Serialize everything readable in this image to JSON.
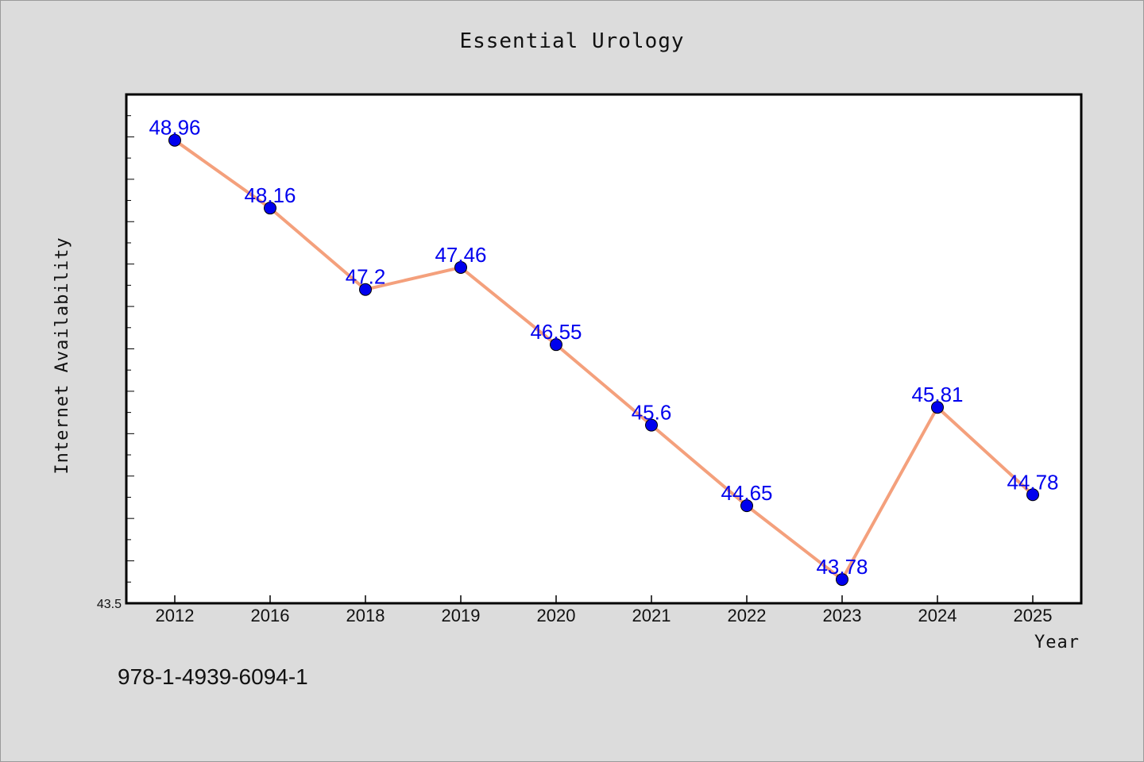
{
  "chart_data": {
    "type": "line",
    "title": "Essential Urology",
    "xlabel": "Year",
    "ylabel": "Internet Availability",
    "categories": [
      "2012",
      "2016",
      "2018",
      "2019",
      "2020",
      "2021",
      "2022",
      "2023",
      "2024",
      "2025"
    ],
    "series": [
      {
        "values": [
          48.96,
          48.16,
          47.2,
          47.46,
          46.55,
          45.6,
          44.65,
          43.78,
          45.81,
          44.78
        ]
      }
    ],
    "data_labels": [
      "48.96",
      "48.16",
      "47.2",
      "47.46",
      "46.55",
      "45.6",
      "44.65",
      "43.78",
      "45.81",
      "44.78"
    ],
    "ylim": [
      43.5,
      49.5
    ],
    "y_tick_labels": [
      "43.5"
    ],
    "grid": false,
    "legend": "none",
    "colors": {
      "line": "#f4a07c",
      "marker": "#0000ee",
      "label": "#0000ee",
      "background": "#dcdcdc",
      "plot_bg": "#ffffff"
    }
  },
  "footer": {
    "isbn": "978-1-4939-6094-1"
  }
}
